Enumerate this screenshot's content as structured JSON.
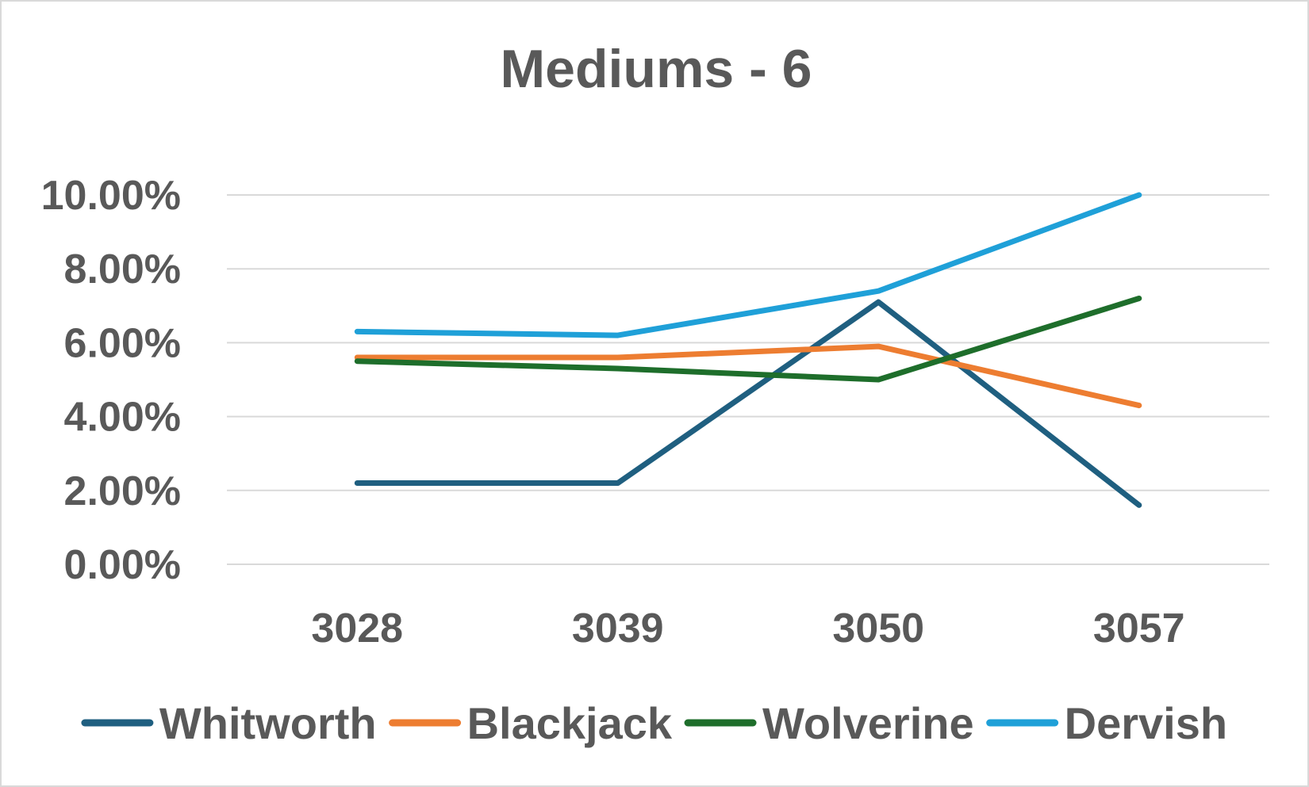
{
  "chart_data": {
    "type": "line",
    "title": "Mediums - 6",
    "xlabel": "",
    "ylabel": "",
    "categories": [
      "3028",
      "3039",
      "3050",
      "3057"
    ],
    "y_ticks": [
      "0.00%",
      "2.00%",
      "4.00%",
      "6.00%",
      "8.00%",
      "10.00%"
    ],
    "ylim": [
      0,
      10
    ],
    "y_unit": "%",
    "grid": true,
    "legend_position": "bottom",
    "series": [
      {
        "name": "Whitworth",
        "color": "#1f5f80",
        "values": [
          2.2,
          2.2,
          7.1,
          1.6
        ]
      },
      {
        "name": "Blackjack",
        "color": "#ed7d31",
        "values": [
          5.6,
          5.6,
          5.9,
          4.3
        ]
      },
      {
        "name": "Wolverine",
        "color": "#1e6e2b",
        "values": [
          5.5,
          5.3,
          5.0,
          7.2
        ]
      },
      {
        "name": "Dervish",
        "color": "#1fa0d8",
        "values": [
          6.3,
          6.2,
          7.4,
          10.0
        ]
      }
    ]
  }
}
